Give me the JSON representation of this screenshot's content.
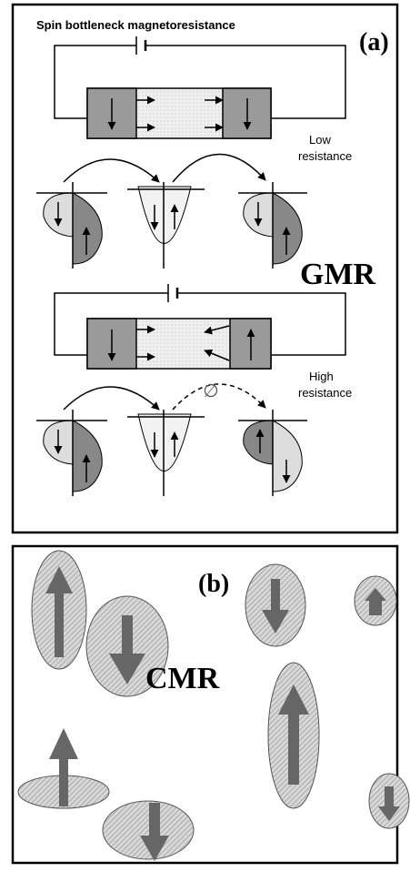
{
  "panel_a": {
    "title": "Spin bottleneck magnetoresistance",
    "label": "(a)",
    "low_resistance": [
      "Low",
      "resistance"
    ],
    "name": "GMR",
    "high_resistance": [
      "High",
      "resistance"
    ],
    "blocked": "∅"
  },
  "panel_b": {
    "label": "(b)",
    "name": "CMR"
  }
}
